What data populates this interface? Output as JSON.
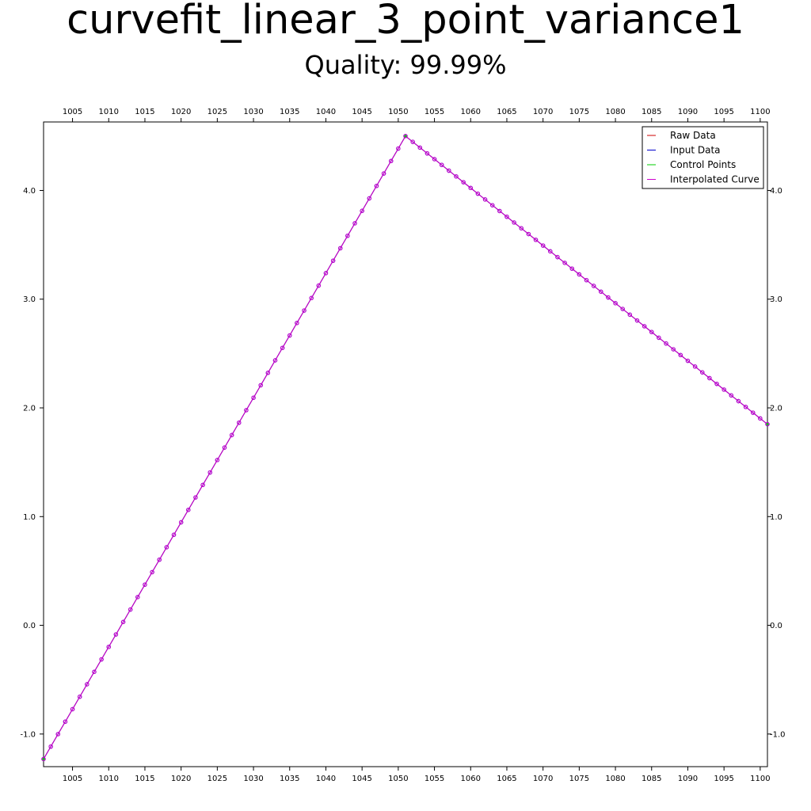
{
  "chart_data": {
    "type": "line",
    "title": "curvefit_linear_3_point_variance1",
    "subtitle": "Quality: 99.99%",
    "xlim": [
      1001,
      1101
    ],
    "ylim": [
      -1.3,
      4.63
    ],
    "x_ticks": [
      1005,
      1010,
      1015,
      1020,
      1025,
      1030,
      1035,
      1040,
      1045,
      1050,
      1055,
      1060,
      1065,
      1070,
      1075,
      1080,
      1085,
      1090,
      1095,
      1100
    ],
    "y_ticks": [
      -1.0,
      0.0,
      1.0,
      2.0,
      3.0,
      4.0
    ],
    "x_tick_labels": [
      "1005",
      "1010",
      "1015",
      "1020",
      "1025",
      "1030",
      "1035",
      "1040",
      "1045",
      "1050",
      "1055",
      "1060",
      "1065",
      "1070",
      "1075",
      "1080",
      "1085",
      "1090",
      "1095",
      "1100"
    ],
    "y_tick_labels": [
      "-1.0",
      "0.0",
      "1.0",
      "2.0",
      "3.0",
      "4.0"
    ],
    "ticks_on_all_sides": true,
    "grid": false,
    "legend_position": "top-right",
    "control_points": {
      "x": [
        1001,
        1051,
        1101
      ],
      "y": [
        -1.23,
        4.5,
        1.85
      ]
    },
    "series": [
      {
        "name": "Raw Data",
        "color": "#cc0000",
        "style": "line"
      },
      {
        "name": "Input Data",
        "color": "#0000cc",
        "style": "line-markers"
      },
      {
        "name": "Control Points",
        "color": "#00cc00",
        "style": "points"
      },
      {
        "name": "Interpolated Curve",
        "color": "#cc00cc",
        "style": "line-markers"
      }
    ]
  }
}
